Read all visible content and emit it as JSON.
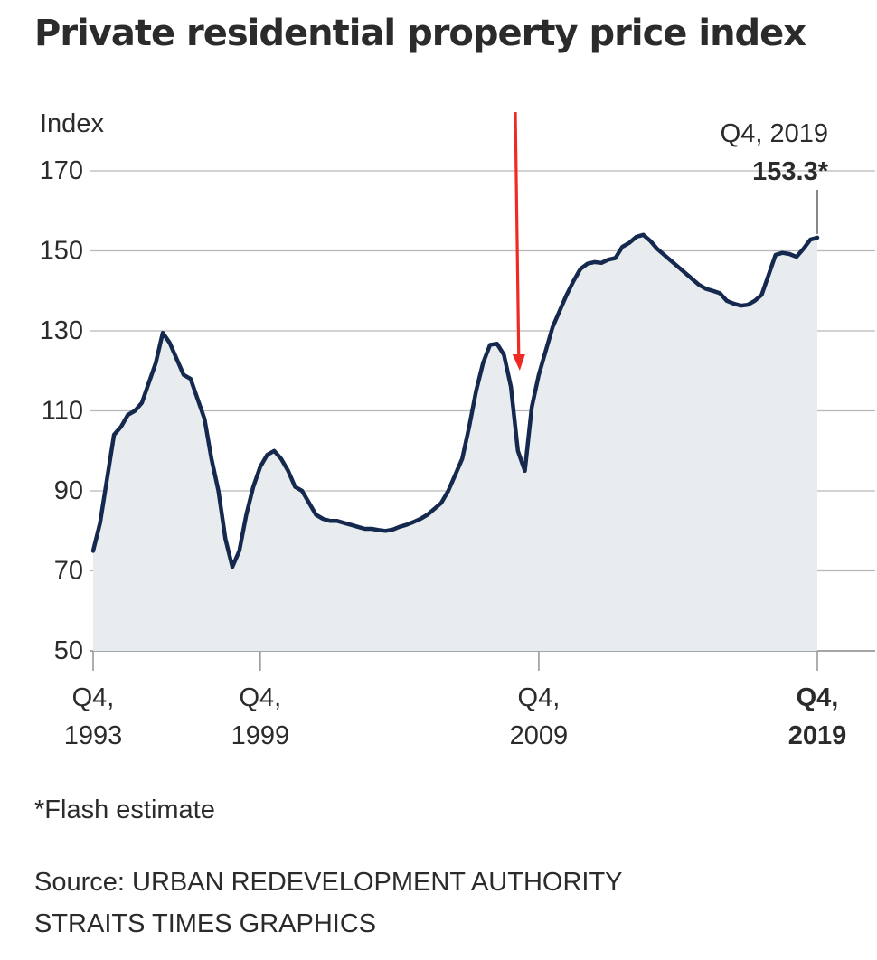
{
  "title": "Private residential property price index",
  "footnote": "*Flash estimate",
  "source_lines": [
    "Source: URBAN REDEVELOPMENT AUTHORITY",
    "STRAITS TIMES GRAPHICS"
  ],
  "colors": {
    "line": "#15294e",
    "area": "#e9ecef",
    "grid": "#b8b8b8",
    "arrow": "#ee2a24",
    "text": "#2b2b2b"
  },
  "chart_data": {
    "type": "area",
    "ylabel": "Index",
    "ylim": [
      50,
      170
    ],
    "yticks": [
      50,
      70,
      90,
      110,
      130,
      150,
      170
    ],
    "xlim": [
      1993.75,
      2019.75
    ],
    "xticks": [
      {
        "x": 1993.75,
        "line1": "Q4,",
        "line2": "1993",
        "bold": false
      },
      {
        "x": 1999.75,
        "line1": "Q4,",
        "line2": "1999",
        "bold": false
      },
      {
        "x": 2009.75,
        "line1": "Q4,",
        "line2": "2009",
        "bold": false
      },
      {
        "x": 2019.75,
        "line1": "Q4,",
        "line2": "2019",
        "bold": true
      }
    ],
    "annotation": {
      "x": 2019.75,
      "label": "Q4, 2019",
      "value": "153.3*"
    },
    "arrow_at": 2009.0,
    "series": [
      {
        "x": [
          1993.75,
          1994.0,
          1994.25,
          1994.5,
          1994.75,
          1995.0,
          1995.25,
          1995.5,
          1995.75,
          1996.0,
          1996.25,
          1996.5,
          1996.75,
          1997.0,
          1997.25,
          1997.5,
          1997.75,
          1998.0,
          1998.25,
          1998.5,
          1998.75,
          1999.0,
          1999.25,
          1999.5,
          1999.75,
          2000.0,
          2000.25,
          2000.5,
          2000.75,
          2001.0,
          2001.25,
          2001.5,
          2001.75,
          2002.0,
          2002.25,
          2002.5,
          2002.75,
          2003.0,
          2003.25,
          2003.5,
          2003.75,
          2004.0,
          2004.25,
          2004.5,
          2004.75,
          2005.0,
          2005.25,
          2005.5,
          2005.75,
          2006.0,
          2006.25,
          2006.5,
          2006.75,
          2007.0,
          2007.25,
          2007.5,
          2007.75,
          2008.0,
          2008.25,
          2008.5,
          2008.75,
          2009.0,
          2009.25,
          2009.5,
          2009.75,
          2010.0,
          2010.25,
          2010.5,
          2010.75,
          2011.0,
          2011.25,
          2011.5,
          2011.75,
          2012.0,
          2012.25,
          2012.5,
          2012.75,
          2013.0,
          2013.25,
          2013.5,
          2013.75,
          2014.0,
          2014.25,
          2014.5,
          2014.75,
          2015.0,
          2015.25,
          2015.5,
          2015.75,
          2016.0,
          2016.25,
          2016.5,
          2016.75,
          2017.0,
          2017.25,
          2017.5,
          2017.75,
          2018.0,
          2018.25,
          2018.5,
          2018.75,
          2019.0,
          2019.25,
          2019.5,
          2019.75
        ],
        "y": [
          75,
          82,
          93,
          104,
          106,
          109,
          110,
          112,
          117,
          122,
          129.5,
          127,
          123,
          119,
          118,
          113,
          108,
          98,
          90,
          78,
          71,
          75,
          84,
          91,
          96,
          99,
          100,
          98,
          95,
          91,
          90,
          87,
          84,
          83,
          82.5,
          82.5,
          82,
          81.5,
          81,
          80.5,
          80.5,
          80.2,
          80,
          80.3,
          81,
          81.5,
          82.2,
          83,
          84,
          85.5,
          87,
          90,
          94,
          98,
          106,
          115,
          122,
          126.5,
          126.8,
          124,
          116,
          100,
          95,
          111,
          119,
          125,
          131,
          135,
          139,
          142.5,
          145.5,
          146.8,
          147.2,
          147,
          147.8,
          148.2,
          151,
          152,
          153.5,
          154,
          152.5,
          150.5,
          149,
          147.5,
          146,
          144.5,
          143,
          141.5,
          140.5,
          140,
          139.4,
          137.5,
          136.8,
          136.3,
          136.5,
          137.5,
          139,
          144,
          149,
          149.5,
          149.2,
          148.5,
          150.5,
          152.8,
          153.3
        ]
      }
    ]
  }
}
